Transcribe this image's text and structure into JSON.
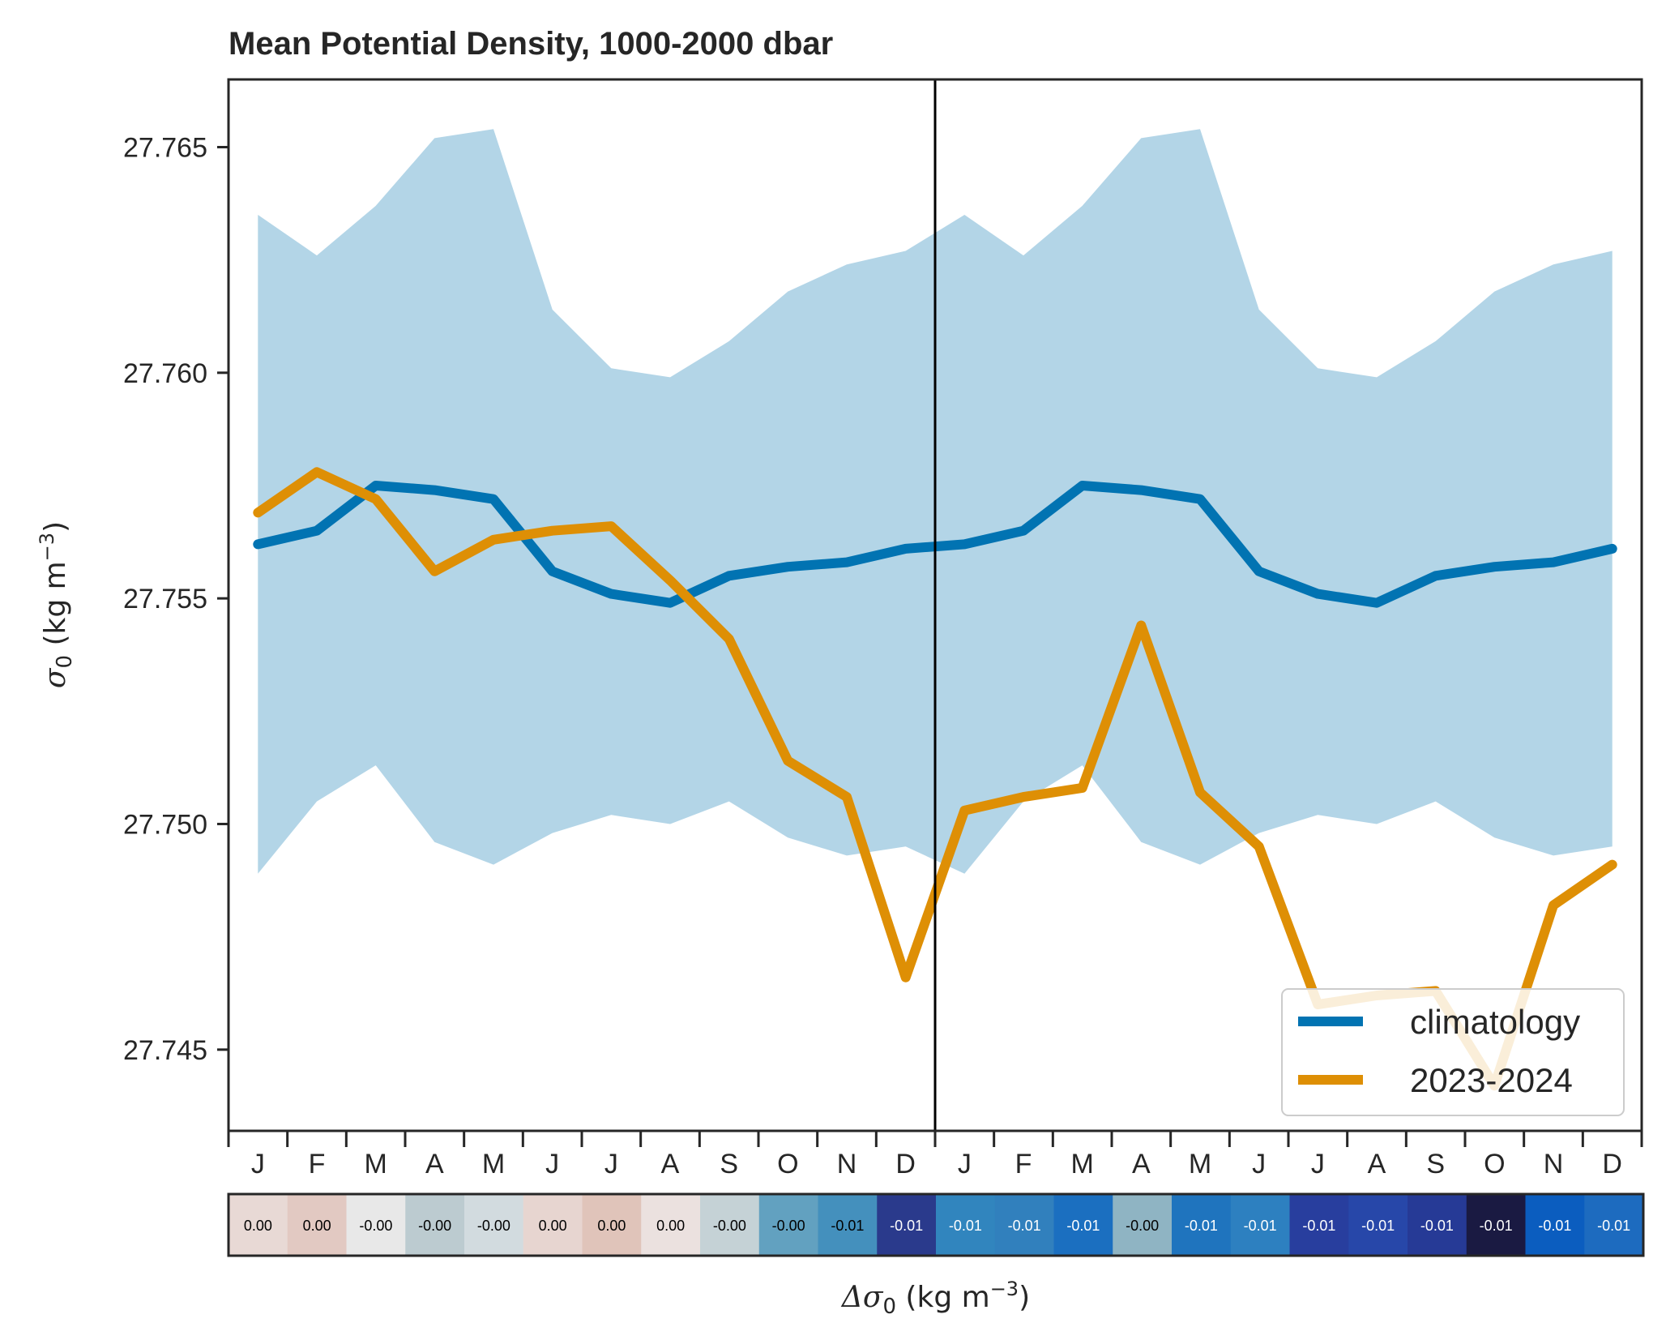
{
  "chart_data": {
    "type": "line",
    "title": "Mean Potential Density, 1000-2000 dbar",
    "ylabel_main": "σ",
    "ylabel_sub": "0",
    "ylabel_unit_pre": " (kg m",
    "ylabel_unit_exp": "−3",
    "ylabel_unit_post": ")",
    "xlabel_delta": "Δσ",
    "xlabel_sub": "0",
    "xlabel_unit_pre": " (kg m",
    "xlabel_unit_exp": "−3",
    "xlabel_unit_post": ")",
    "ylim": [
      27.7432,
      27.7665
    ],
    "yticks": [
      "27.745",
      "27.750",
      "27.755",
      "27.760",
      "27.765"
    ],
    "ytick_values": [
      27.745,
      27.75,
      27.755,
      27.76,
      27.765
    ],
    "x_months": [
      "J",
      "F",
      "M",
      "A",
      "M",
      "J",
      "J",
      "A",
      "S",
      "O",
      "N",
      "D",
      "J",
      "F",
      "M",
      "A",
      "M",
      "J",
      "J",
      "A",
      "S",
      "O",
      "N",
      "D"
    ],
    "divider_after_index": 11.5,
    "series": [
      {
        "name": "climatology",
        "color": "#0173b2",
        "values": [
          27.7562,
          27.7565,
          27.7575,
          27.7574,
          27.7572,
          27.7556,
          27.7551,
          27.7549,
          27.7555,
          27.7557,
          27.7558,
          27.7561,
          27.7562,
          27.7565,
          27.7575,
          27.7574,
          27.7572,
          27.7556,
          27.7551,
          27.7549,
          27.7555,
          27.7557,
          27.7558,
          27.7561
        ]
      },
      {
        "name": "2023-2024",
        "color": "#de8f05",
        "values": [
          27.7569,
          27.7578,
          27.7572,
          27.7556,
          27.7563,
          27.7565,
          27.7566,
          27.7554,
          27.7541,
          27.7514,
          27.7506,
          27.7466,
          27.7503,
          27.7506,
          27.7508,
          27.7544,
          27.7507,
          27.7495,
          27.746,
          27.7462,
          27.7463,
          27.7442,
          27.7482,
          27.7491
        ]
      }
    ],
    "band": {
      "color": "#b3d5e7",
      "upper": [
        27.7635,
        27.7626,
        27.7637,
        27.7652,
        27.7654,
        27.7614,
        27.7601,
        27.7599,
        27.7607,
        27.7618,
        27.7624,
        27.7627,
        27.7635,
        27.7626,
        27.7637,
        27.7652,
        27.7654,
        27.7614,
        27.7601,
        27.7599,
        27.7607,
        27.7618,
        27.7624,
        27.7627
      ],
      "lower": [
        27.7489,
        27.7505,
        27.7513,
        27.7496,
        27.7491,
        27.7498,
        27.7502,
        27.75,
        27.7505,
        27.7497,
        27.7493,
        27.7495,
        27.7489,
        27.7505,
        27.7513,
        27.7496,
        27.7491,
        27.7498,
        27.7502,
        27.75,
        27.7505,
        27.7497,
        27.7493,
        27.7495
      ]
    },
    "legend": {
      "position": "lower right",
      "entries": [
        "climatology",
        "2023-2024"
      ]
    },
    "anomaly_strip": {
      "labels": [
        "0.00",
        "0.00",
        "-0.00",
        "-0.00",
        "-0.00",
        "0.00",
        "0.00",
        "0.00",
        "-0.00",
        "-0.00",
        "-0.01",
        "-0.01",
        "-0.01",
        "-0.01",
        "-0.01",
        "-0.00",
        "-0.01",
        "-0.01",
        "-0.01",
        "-0.01",
        "-0.01",
        "-0.01",
        "-0.01",
        "-0.01"
      ],
      "colors": [
        "#e8d9d5",
        "#e2c9c2",
        "#e8e8e8",
        "#bccbd0",
        "#d2dbdf",
        "#e7d5d0",
        "#e0c4ba",
        "#ebe1df",
        "#c5d2d6",
        "#62a1c0",
        "#4490bd",
        "#2a3a8c",
        "#3185be",
        "#3180bd",
        "#1b6fc0",
        "#8fb4c3",
        "#1f74be",
        "#2d80c0",
        "#283e9e",
        "#2747a9",
        "#263a96",
        "#1a1a42",
        "#0b5dbf",
        "#1d6bbf"
      ],
      "text_colors": [
        "#000000",
        "#000000",
        "#000000",
        "#000000",
        "#000000",
        "#000000",
        "#000000",
        "#000000",
        "#000000",
        "#000000",
        "#000000",
        "#ffffff",
        "#ffffff",
        "#ffffff",
        "#ffffff",
        "#000000",
        "#ffffff",
        "#ffffff",
        "#ffffff",
        "#ffffff",
        "#ffffff",
        "#ffffff",
        "#ffffff",
        "#ffffff"
      ]
    }
  }
}
